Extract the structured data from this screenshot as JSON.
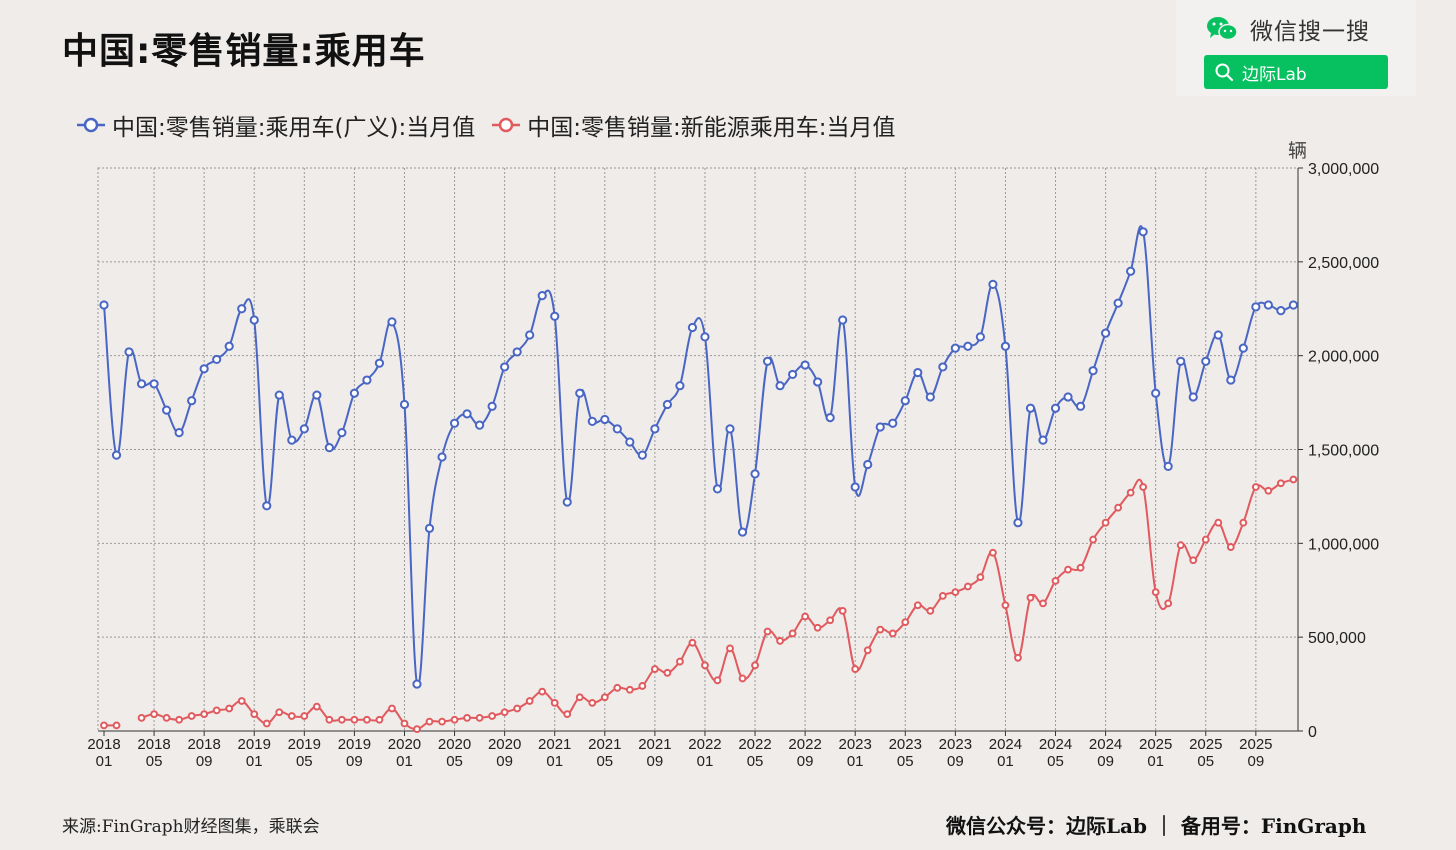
{
  "title": "中国:零售销量:乘用车",
  "wechat": {
    "label": "微信搜一搜",
    "search_text": "边际Lab",
    "icon": "wechat-icon",
    "search_icon": "search-icon",
    "accent": "#07c160"
  },
  "legend": [
    {
      "label": "中国:零售销量:乘用车(广义):当月值",
      "color": "#4a66c4"
    },
    {
      "label": "中国:零售销量:新能源乘用车:当月值",
      "color": "#e05a5e"
    }
  ],
  "source": "来源:FinGraph财经图集，乘联会",
  "footer": "微信公众号：边际Lab ｜ 备用号：FinGraph",
  "chart_data": {
    "type": "line",
    "ylabel": "辆",
    "ylim": [
      0,
      3000000
    ],
    "yticks": [
      0,
      500000,
      1000000,
      1500000,
      2000000,
      2500000,
      3000000
    ],
    "ytick_labels": [
      "0",
      "500,000",
      "1,000,000",
      "1,500,000",
      "2,000,000",
      "2,500,000",
      "3,000,000"
    ],
    "xticks": [
      "2018\n01",
      "2018\n05",
      "2018\n09",
      "2019\n01",
      "2019\n05",
      "2019\n09",
      "2020\n01",
      "2020\n05",
      "2020\n09",
      "2021\n01",
      "2021\n05",
      "2021\n09",
      "2022\n01",
      "2022\n05",
      "2022\n09",
      "2023\n01",
      "2023\n05",
      "2023\n09",
      "2024\n01",
      "2024\n05",
      "2024\n09",
      "2025\n01",
      "2025\n05",
      "2025\n09"
    ],
    "x_start": "2018-01",
    "grid": true,
    "series": [
      {
        "name": "中国:零售销量:乘用车(广义):当月值",
        "color": "#4a66c4",
        "values": [
          2270000,
          1470000,
          2020000,
          1850000,
          1850000,
          1710000,
          1590000,
          1760000,
          1930000,
          1980000,
          2050000,
          2250000,
          2190000,
          1200000,
          1790000,
          1550000,
          1610000,
          1790000,
          1510000,
          1590000,
          1800000,
          1870000,
          1960000,
          2180000,
          1740000,
          250000,
          1080000,
          1460000,
          1640000,
          1690000,
          1630000,
          1730000,
          1940000,
          2020000,
          2110000,
          2320000,
          2210000,
          1220000,
          1800000,
          1650000,
          1660000,
          1610000,
          1540000,
          1470000,
          1610000,
          1740000,
          1840000,
          2150000,
          2100000,
          1290000,
          1610000,
          1060000,
          1370000,
          1970000,
          1840000,
          1900000,
          1950000,
          1860000,
          1670000,
          2190000,
          1300000,
          1420000,
          1620000,
          1640000,
          1760000,
          1910000,
          1780000,
          1940000,
          2040000,
          2050000,
          2100000,
          2380000,
          2050000,
          1110000,
          1720000,
          1550000,
          1720000,
          1780000,
          1730000,
          1920000,
          2120000,
          2280000,
          2450000,
          2660000,
          1800000,
          1410000,
          1970000,
          1780000,
          1970000,
          2110000,
          1870000,
          2040000,
          2260000,
          2270000,
          2240000,
          2270000
        ]
      },
      {
        "name": "中国:零售销量:新能源乘用车:当月值",
        "color": "#e05a5e",
        "values": [
          30000,
          30000,
          null,
          70000,
          90000,
          70000,
          60000,
          80000,
          90000,
          110000,
          120000,
          160000,
          90000,
          40000,
          100000,
          80000,
          80000,
          130000,
          60000,
          60000,
          60000,
          60000,
          60000,
          120000,
          40000,
          10000,
          50000,
          50000,
          60000,
          70000,
          70000,
          80000,
          100000,
          120000,
          160000,
          210000,
          150000,
          90000,
          180000,
          150000,
          180000,
          230000,
          220000,
          240000,
          330000,
          310000,
          370000,
          470000,
          350000,
          270000,
          440000,
          280000,
          350000,
          530000,
          480000,
          520000,
          610000,
          550000,
          590000,
          640000,
          330000,
          430000,
          540000,
          520000,
          580000,
          670000,
          640000,
          720000,
          740000,
          770000,
          820000,
          950000,
          670000,
          390000,
          710000,
          680000,
          800000,
          860000,
          870000,
          1020000,
          1110000,
          1190000,
          1270000,
          1300000,
          740000,
          680000,
          990000,
          910000,
          1020000,
          1110000,
          980000,
          1110000,
          1300000,
          1280000,
          1320000,
          1340000
        ]
      }
    ]
  }
}
